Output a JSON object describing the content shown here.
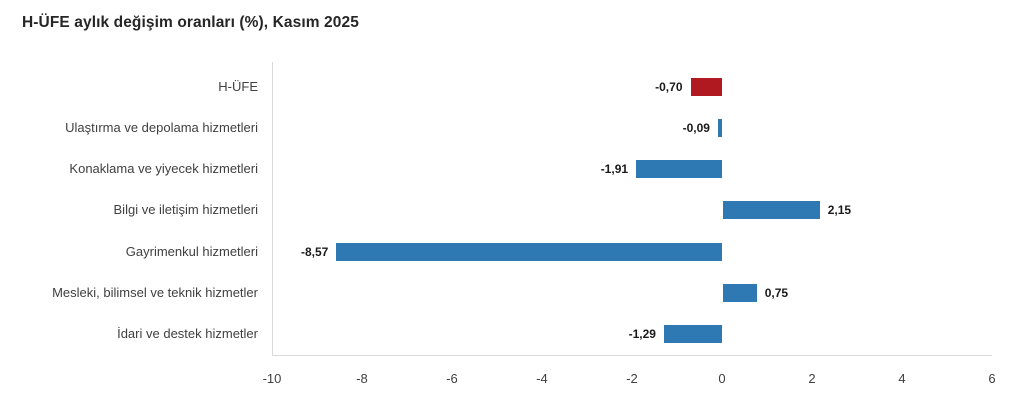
{
  "title": "H-ÜFE aylık değişim oranları (%), Kasım 2025",
  "chart_data": {
    "type": "bar",
    "orientation": "horizontal",
    "title": "H-ÜFE aylık değişim oranları (%), Kasım 2025",
    "categories": [
      "H-ÜFE",
      "Ulaştırma ve depolama hizmetleri",
      "Konaklama ve yiyecek hizmetleri",
      "Bilgi ve iletişim hizmetleri",
      "Gayrimenkul hizmetleri",
      "Mesleki, bilimsel ve teknik hizmetler",
      "İdari ve destek hizmetler"
    ],
    "values": [
      -0.7,
      -0.09,
      -1.91,
      2.15,
      -8.57,
      0.75,
      -1.29
    ],
    "value_labels": [
      "-0,70",
      "-0,09",
      "-1,91",
      "2,15",
      "-8,57",
      "0,75",
      "-1,29"
    ],
    "x_ticks": [
      -10,
      -8,
      -6,
      -4,
      -2,
      0,
      2,
      4,
      6
    ],
    "xlim": [
      -10,
      6
    ],
    "grid": false,
    "legend": "none",
    "highlight_index": 0,
    "colors": {
      "default_bar": "#2E79B4",
      "highlight_bar": "#B0191F",
      "axis_line": "#D9D9D9",
      "category_text": "#404040",
      "tick_text": "#404040",
      "value_text": "#1A1A1A",
      "title_text": "#262626"
    }
  }
}
